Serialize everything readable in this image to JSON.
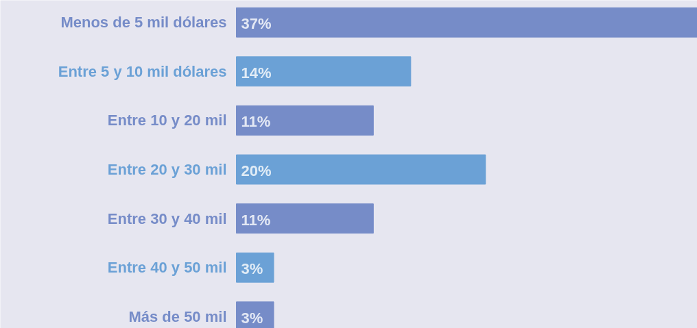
{
  "chart_data": {
    "type": "bar",
    "orientation": "horizontal",
    "categories": [
      "Menos de 5 mil dólares",
      "Entre 5 y 10 mil dólares",
      "Entre 10 y 20 mil",
      "Entre 20 y 30 mil",
      "Entre 30 y 40 mil",
      "Entre 40 y 50 mil",
      "Más de 50 mil"
    ],
    "values": [
      37,
      14,
      11,
      20,
      11,
      3,
      3
    ],
    "colors": [
      "#768cc8",
      "#6ba1d6",
      "#768cc8",
      "#6ba1d6",
      "#768cc8",
      "#6ba1d6",
      "#768cc8"
    ],
    "value_labels": [
      "37%",
      "14%",
      "11%",
      "20%",
      "11%",
      "3%",
      "3%"
    ],
    "grid": false
  }
}
